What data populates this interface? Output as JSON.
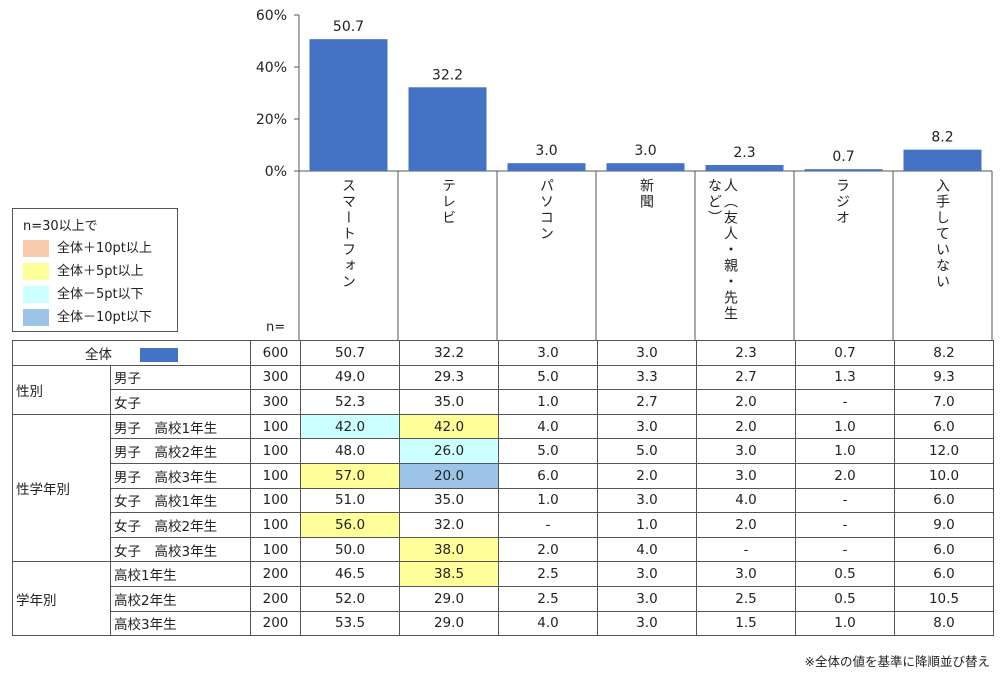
{
  "chart_data": {
    "type": "bar",
    "categories": [
      "スマートフォン",
      "テレビ",
      "パソコン",
      "新聞",
      "人（友人・親・先生など）",
      "ラジオ",
      "入手していない"
    ],
    "values": [
      50.7,
      32.2,
      3.0,
      3.0,
      2.3,
      0.7,
      8.2
    ],
    "value_labels": [
      "50.7",
      "32.2",
      "3.0",
      "3.0",
      "2.3",
      "0.7",
      "8.2"
    ],
    "ylim": [
      0,
      60
    ],
    "yticks": [
      "0%",
      "20%",
      "40%",
      "60%"
    ],
    "bar_color": "#4472c4"
  },
  "legend": {
    "title": "n=30以上で",
    "items": [
      {
        "label": "全体＋10pt以上",
        "color": "#f8cbad"
      },
      {
        "label": "全体＋5pt以上",
        "color": "#ffff99"
      },
      {
        "label": "全体－5pt以下",
        "color": "#ccffff"
      },
      {
        "label": "全体－10pt以下",
        "color": "#9dc3e6"
      }
    ]
  },
  "table": {
    "n_label": "n=",
    "total_row": {
      "label": "全体",
      "n": "600",
      "values": [
        "50.7",
        "32.2",
        "3.0",
        "3.0",
        "2.3",
        "0.7",
        "8.2"
      ]
    },
    "groups": [
      {
        "name": "性別",
        "rows": [
          {
            "label": "男子",
            "n": "300",
            "values": [
              "49.0",
              "29.3",
              "5.0",
              "3.3",
              "2.7",
              "1.3",
              "9.3"
            ]
          },
          {
            "label": "女子",
            "n": "300",
            "values": [
              "52.3",
              "35.0",
              "1.0",
              "2.7",
              "2.0",
              "-",
              "7.0"
            ]
          }
        ]
      },
      {
        "name": "性学年別",
        "rows": [
          {
            "label": "男子　高校1年生",
            "n": "100",
            "values": [
              "42.0",
              "42.0",
              "4.0",
              "3.0",
              "2.0",
              "1.0",
              "6.0"
            ],
            "hl": {
              "0": "cyan",
              "1": "yellow"
            }
          },
          {
            "label": "男子　高校2年生",
            "n": "100",
            "values": [
              "48.0",
              "26.0",
              "5.0",
              "5.0",
              "3.0",
              "1.0",
              "12.0"
            ],
            "hl": {
              "1": "cyan"
            }
          },
          {
            "label": "男子　高校3年生",
            "n": "100",
            "values": [
              "57.0",
              "20.0",
              "6.0",
              "2.0",
              "3.0",
              "2.0",
              "10.0"
            ],
            "hl": {
              "0": "yellow",
              "1": "blue"
            }
          },
          {
            "label": "女子　高校1年生",
            "n": "100",
            "values": [
              "51.0",
              "35.0",
              "1.0",
              "3.0",
              "4.0",
              "-",
              "6.0"
            ]
          },
          {
            "label": "女子　高校2年生",
            "n": "100",
            "values": [
              "56.0",
              "32.0",
              "-",
              "1.0",
              "2.0",
              "-",
              "9.0"
            ],
            "hl": {
              "0": "yellow"
            }
          },
          {
            "label": "女子　高校3年生",
            "n": "100",
            "values": [
              "50.0",
              "38.0",
              "2.0",
              "4.0",
              "-",
              "-",
              "6.0"
            ],
            "hl": {
              "1": "yellow"
            }
          }
        ]
      },
      {
        "name": "学年別",
        "rows": [
          {
            "label": "高校1年生",
            "n": "200",
            "values": [
              "46.5",
              "38.5",
              "2.5",
              "3.0",
              "3.0",
              "0.5",
              "6.0"
            ],
            "hl": {
              "1": "yellow"
            }
          },
          {
            "label": "高校2年生",
            "n": "200",
            "values": [
              "52.0",
              "29.0",
              "2.5",
              "3.0",
              "2.5",
              "0.5",
              "10.5"
            ]
          },
          {
            "label": "高校3年生",
            "n": "200",
            "values": [
              "53.5",
              "29.0",
              "4.0",
              "3.0",
              "1.5",
              "1.0",
              "8.0"
            ]
          }
        ]
      }
    ]
  },
  "footnote": "※全体の値を基準に降順並び替え"
}
